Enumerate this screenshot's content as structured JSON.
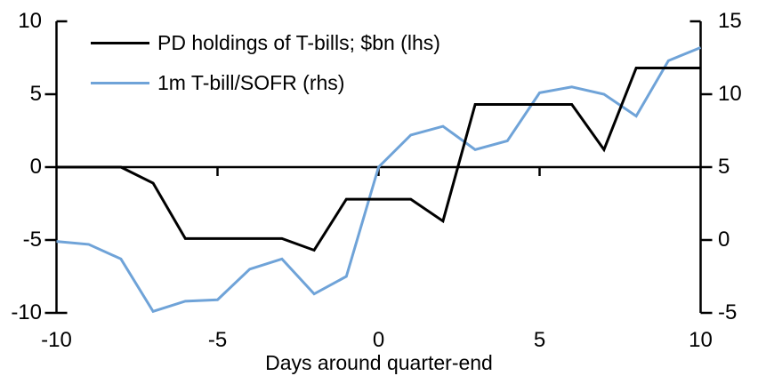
{
  "chart_data": {
    "type": "line",
    "xlabel": "Days around quarter-end",
    "x": [
      -10,
      -9,
      -8,
      -7,
      -6,
      -5,
      -4,
      -3,
      -2,
      -1,
      0,
      1,
      2,
      3,
      4,
      5,
      6,
      7,
      8,
      9,
      10
    ],
    "series": [
      {
        "name": "PD holdings of T-bills; $bn (lhs)",
        "axis": "left",
        "color": "#000000",
        "values": [
          0,
          0,
          0,
          -1.1,
          -4.9,
          -4.9,
          -4.9,
          -4.9,
          -5.7,
          -2.2,
          -2.2,
          -2.2,
          -3.7,
          4.3,
          4.3,
          4.3,
          4.3,
          1.2,
          6.8,
          6.8,
          6.8
        ]
      },
      {
        "name": "1m T-bill/SOFR (rhs)",
        "axis": "right",
        "color": "#6FA3D8",
        "values": [
          -0.1,
          -0.3,
          -1.3,
          -4.9,
          -4.2,
          -4.1,
          -2.0,
          -1.3,
          -3.7,
          -2.5,
          5.0,
          7.2,
          7.8,
          6.2,
          6.8,
          10.1,
          10.5,
          10.0,
          8.5,
          12.3,
          13.2
        ]
      }
    ],
    "left_axis": {
      "min": -10,
      "max": 10,
      "ticks": [
        10,
        5,
        0,
        -5,
        -10
      ]
    },
    "right_axis": {
      "min": -5,
      "max": 15,
      "ticks": [
        15,
        10,
        5,
        0,
        -5
      ]
    },
    "x_ticks": [
      -10,
      -5,
      0,
      5,
      10
    ],
    "legend_position": "top-left",
    "grid": false,
    "axis_color": "#000000",
    "background": "#ffffff"
  }
}
